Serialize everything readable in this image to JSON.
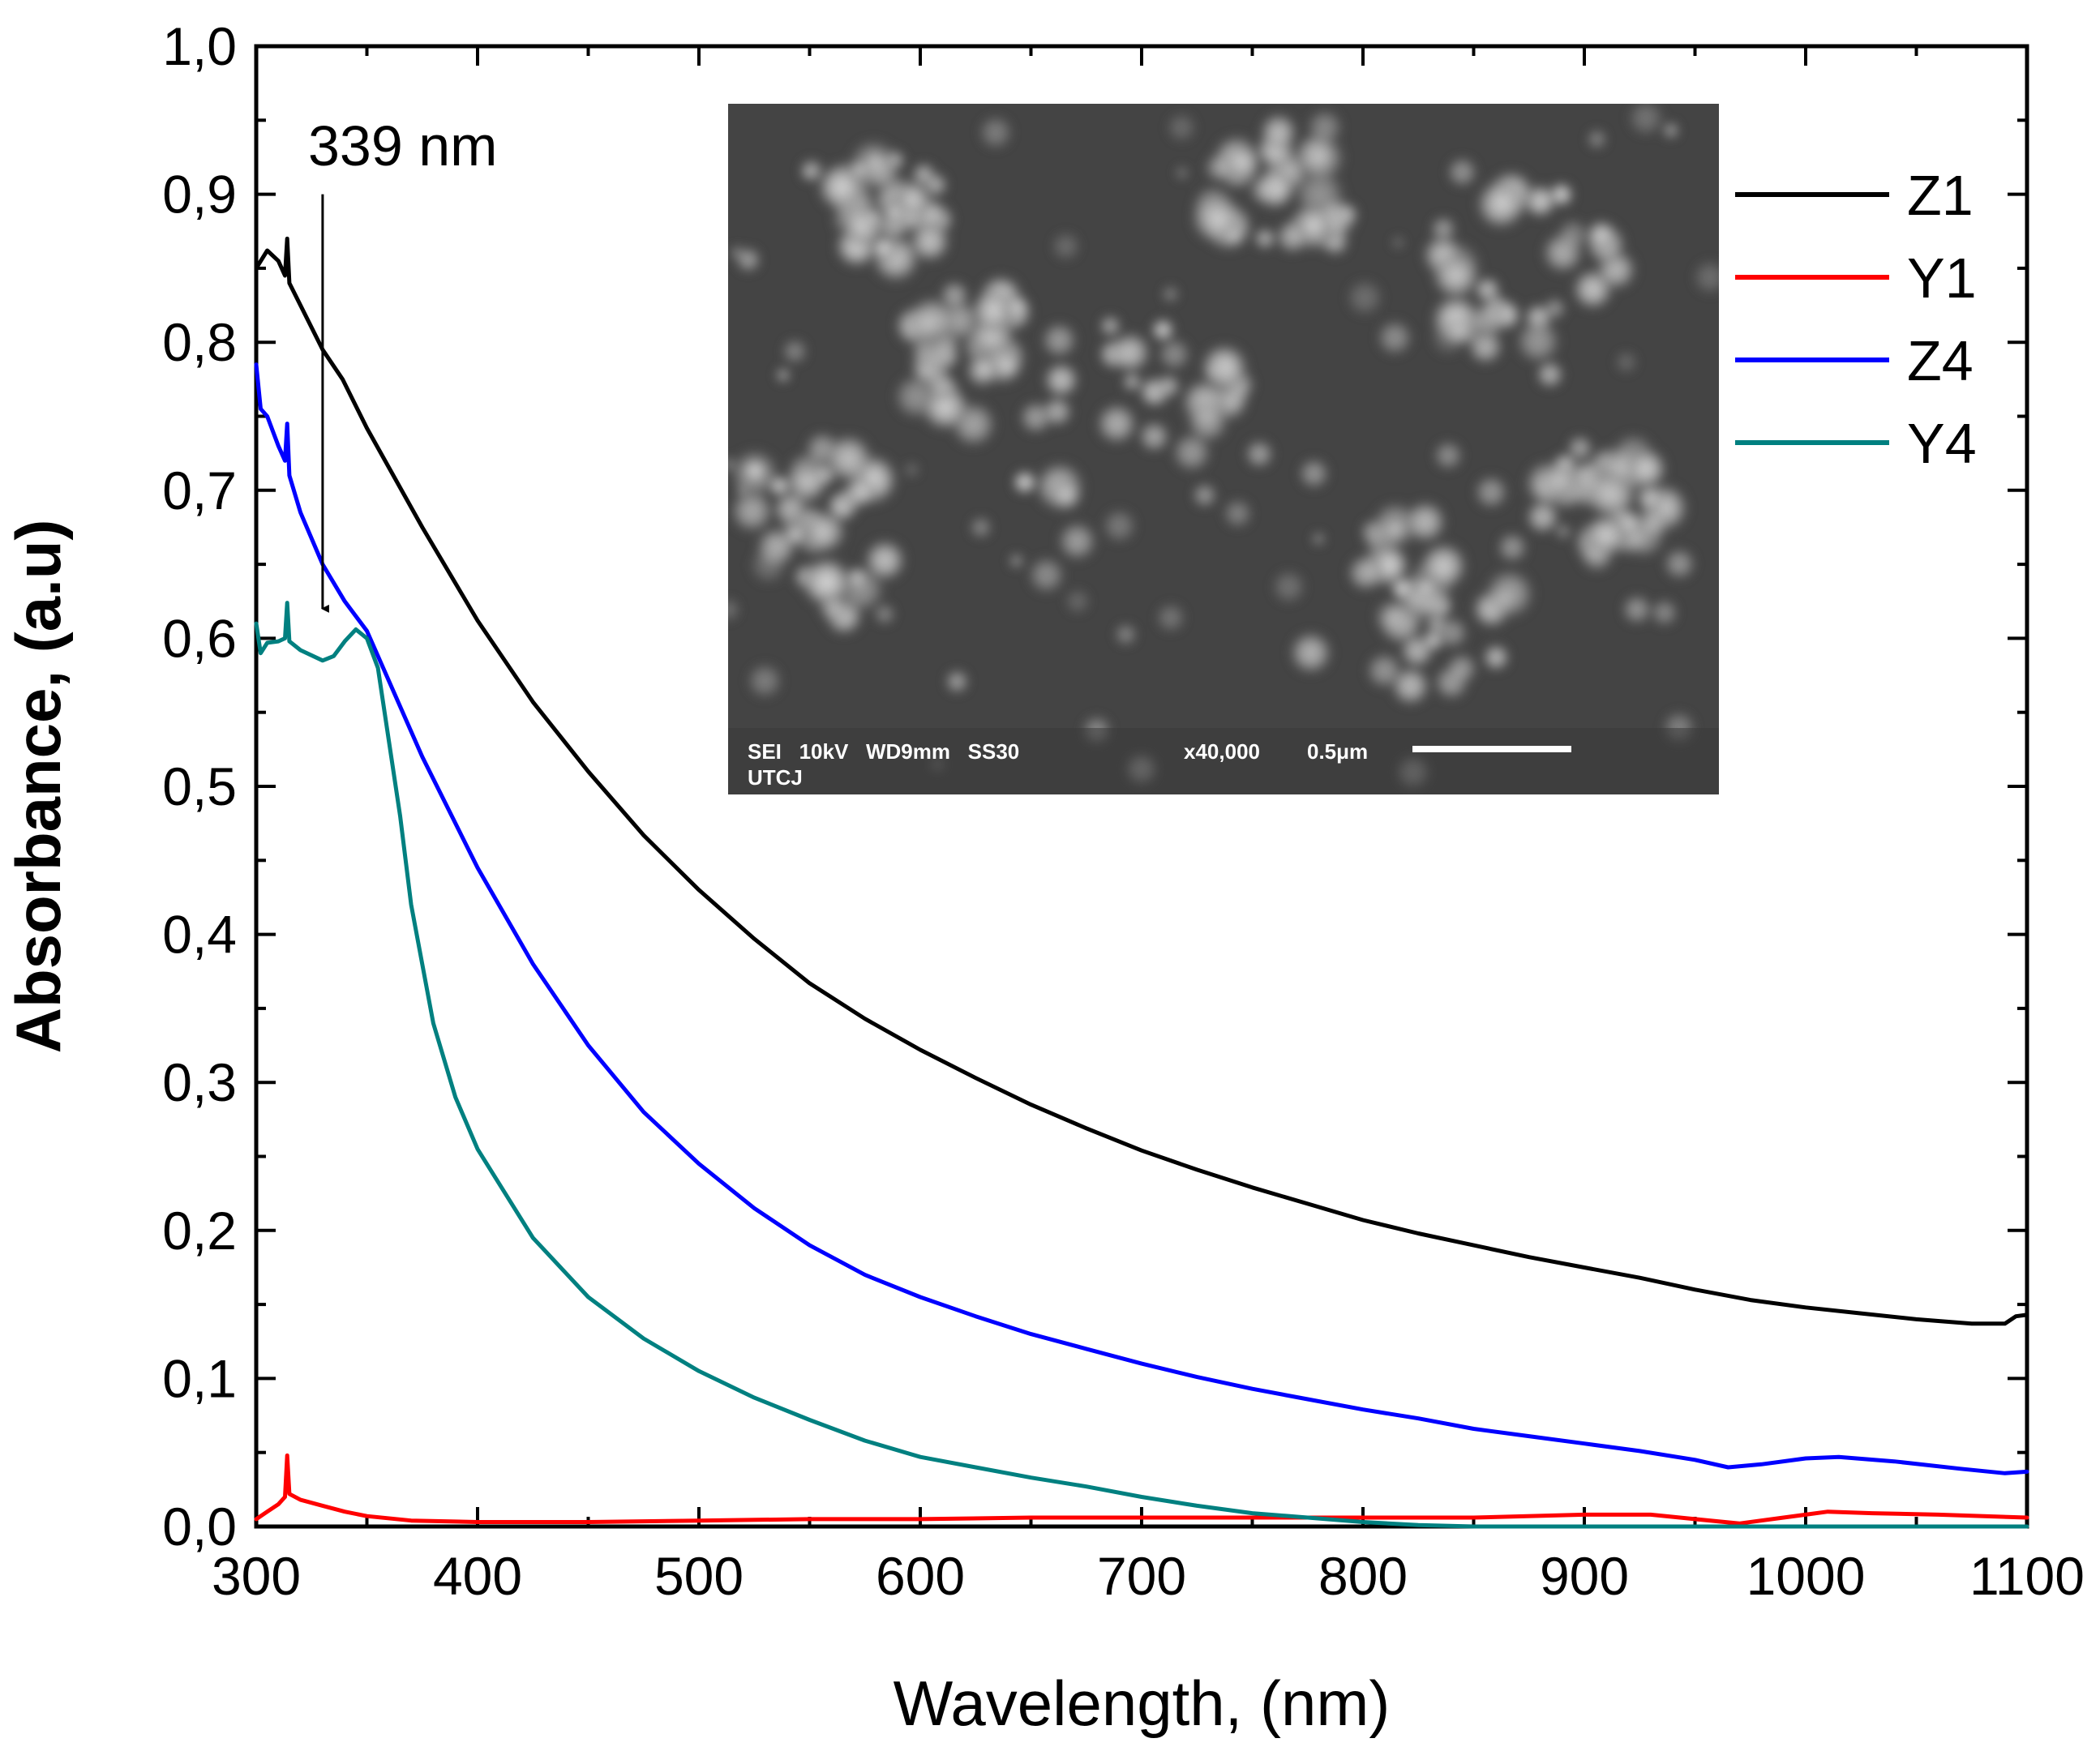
{
  "chart_data": {
    "type": "line",
    "title": "",
    "xlabel": "Wavelength, (nm)",
    "ylabel": "Absorbance, (a.u)",
    "xlim": [
      300,
      1100
    ],
    "ylim": [
      0.0,
      1.0
    ],
    "x_ticks": [
      {
        "value": 300,
        "label": "300"
      },
      {
        "value": 400,
        "label": "400"
      },
      {
        "value": 500,
        "label": "500"
      },
      {
        "value": 600,
        "label": "600"
      },
      {
        "value": 700,
        "label": "700"
      },
      {
        "value": 800,
        "label": "800"
      },
      {
        "value": 900,
        "label": "900"
      },
      {
        "value": 1000,
        "label": "1000"
      },
      {
        "value": 1100,
        "label": "1100"
      }
    ],
    "y_ticks": [
      {
        "value": 0.0,
        "label": "0,0"
      },
      {
        "value": 0.1,
        "label": "0,1"
      },
      {
        "value": 0.2,
        "label": "0,2"
      },
      {
        "value": 0.3,
        "label": "0,3"
      },
      {
        "value": 0.4,
        "label": "0,4"
      },
      {
        "value": 0.5,
        "label": "0,5"
      },
      {
        "value": 0.6,
        "label": "0,6"
      },
      {
        "value": 0.7,
        "label": "0,7"
      },
      {
        "value": 0.8,
        "label": "0,8"
      },
      {
        "value": 0.9,
        "label": "0,9"
      },
      {
        "value": 1.0,
        "label": "1,0"
      }
    ],
    "grid": false,
    "legend_position": "top-right",
    "series": [
      {
        "name": "Z1",
        "color": "#000000",
        "points": [
          [
            300,
            0.85
          ],
          [
            305,
            0.862
          ],
          [
            310,
            0.855
          ],
          [
            313,
            0.845
          ],
          [
            314,
            0.87
          ],
          [
            315,
            0.84
          ],
          [
            320,
            0.825
          ],
          [
            330,
            0.795
          ],
          [
            339,
            0.775
          ],
          [
            350,
            0.742
          ],
          [
            375,
            0.675
          ],
          [
            400,
            0.612
          ],
          [
            425,
            0.557
          ],
          [
            450,
            0.51
          ],
          [
            475,
            0.467
          ],
          [
            500,
            0.43
          ],
          [
            525,
            0.397
          ],
          [
            550,
            0.367
          ],
          [
            575,
            0.343
          ],
          [
            600,
            0.322
          ],
          [
            625,
            0.303
          ],
          [
            650,
            0.285
          ],
          [
            675,
            0.269
          ],
          [
            700,
            0.254
          ],
          [
            725,
            0.241
          ],
          [
            750,
            0.229
          ],
          [
            775,
            0.218
          ],
          [
            800,
            0.207
          ],
          [
            825,
            0.198
          ],
          [
            850,
            0.19
          ],
          [
            875,
            0.182
          ],
          [
            900,
            0.175
          ],
          [
            925,
            0.168
          ],
          [
            950,
            0.16
          ],
          [
            975,
            0.153
          ],
          [
            1000,
            0.148
          ],
          [
            1025,
            0.144
          ],
          [
            1050,
            0.14
          ],
          [
            1075,
            0.137
          ],
          [
            1090,
            0.137
          ],
          [
            1095,
            0.142
          ],
          [
            1100,
            0.143
          ]
        ]
      },
      {
        "name": "Y1",
        "color": "#ff0000",
        "points": [
          [
            300,
            0.005
          ],
          [
            305,
            0.01
          ],
          [
            310,
            0.015
          ],
          [
            313,
            0.02
          ],
          [
            314,
            0.048
          ],
          [
            315,
            0.022
          ],
          [
            320,
            0.018
          ],
          [
            330,
            0.014
          ],
          [
            340,
            0.01
          ],
          [
            350,
            0.007
          ],
          [
            370,
            0.004
          ],
          [
            400,
            0.003
          ],
          [
            450,
            0.003
          ],
          [
            500,
            0.004
          ],
          [
            550,
            0.005
          ],
          [
            600,
            0.005
          ],
          [
            650,
            0.006
          ],
          [
            700,
            0.006
          ],
          [
            750,
            0.006
          ],
          [
            800,
            0.006
          ],
          [
            850,
            0.006
          ],
          [
            900,
            0.008
          ],
          [
            930,
            0.008
          ],
          [
            950,
            0.005
          ],
          [
            970,
            0.002
          ],
          [
            990,
            0.006
          ],
          [
            1010,
            0.01
          ],
          [
            1030,
            0.009
          ],
          [
            1060,
            0.008
          ],
          [
            1100,
            0.006
          ]
        ]
      },
      {
        "name": "Z4",
        "color": "#0000ff",
        "points": [
          [
            300,
            0.785
          ],
          [
            302,
            0.755
          ],
          [
            305,
            0.75
          ],
          [
            310,
            0.73
          ],
          [
            313,
            0.72
          ],
          [
            314,
            0.745
          ],
          [
            315,
            0.71
          ],
          [
            320,
            0.685
          ],
          [
            330,
            0.65
          ],
          [
            340,
            0.625
          ],
          [
            350,
            0.605
          ],
          [
            375,
            0.52
          ],
          [
            400,
            0.445
          ],
          [
            425,
            0.38
          ],
          [
            450,
            0.325
          ],
          [
            475,
            0.28
          ],
          [
            500,
            0.245
          ],
          [
            525,
            0.215
          ],
          [
            550,
            0.19
          ],
          [
            575,
            0.17
          ],
          [
            600,
            0.155
          ],
          [
            625,
            0.142
          ],
          [
            650,
            0.13
          ],
          [
            675,
            0.12
          ],
          [
            700,
            0.11
          ],
          [
            725,
            0.101
          ],
          [
            750,
            0.093
          ],
          [
            775,
            0.086
          ],
          [
            800,
            0.079
          ],
          [
            825,
            0.073
          ],
          [
            850,
            0.066
          ],
          [
            875,
            0.061
          ],
          [
            900,
            0.056
          ],
          [
            925,
            0.051
          ],
          [
            950,
            0.045
          ],
          [
            965,
            0.04
          ],
          [
            980,
            0.042
          ],
          [
            1000,
            0.046
          ],
          [
            1015,
            0.047
          ],
          [
            1040,
            0.044
          ],
          [
            1070,
            0.039
          ],
          [
            1090,
            0.036
          ],
          [
            1100,
            0.037
          ]
        ]
      },
      {
        "name": "Y4",
        "color": "#008080",
        "points": [
          [
            300,
            0.61
          ],
          [
            302,
            0.59
          ],
          [
            305,
            0.597
          ],
          [
            310,
            0.598
          ],
          [
            313,
            0.6
          ],
          [
            314,
            0.624
          ],
          [
            315,
            0.598
          ],
          [
            320,
            0.592
          ],
          [
            330,
            0.585
          ],
          [
            335,
            0.588
          ],
          [
            340,
            0.598
          ],
          [
            345,
            0.606
          ],
          [
            350,
            0.6
          ],
          [
            355,
            0.58
          ],
          [
            360,
            0.53
          ],
          [
            365,
            0.48
          ],
          [
            370,
            0.42
          ],
          [
            380,
            0.34
          ],
          [
            390,
            0.29
          ],
          [
            400,
            0.255
          ],
          [
            425,
            0.195
          ],
          [
            450,
            0.155
          ],
          [
            475,
            0.127
          ],
          [
            500,
            0.105
          ],
          [
            525,
            0.087
          ],
          [
            550,
            0.072
          ],
          [
            575,
            0.058
          ],
          [
            600,
            0.047
          ],
          [
            625,
            0.04
          ],
          [
            650,
            0.033
          ],
          [
            675,
            0.027
          ],
          [
            700,
            0.02
          ],
          [
            725,
            0.014
          ],
          [
            750,
            0.009
          ],
          [
            775,
            0.006
          ],
          [
            800,
            0.003
          ],
          [
            825,
            0.001
          ],
          [
            850,
            0.0
          ],
          [
            900,
            0.0
          ],
          [
            950,
            0.0
          ],
          [
            1000,
            0.0
          ],
          [
            1050,
            0.0
          ],
          [
            1100,
            0.0
          ]
        ]
      }
    ],
    "annotations": [
      {
        "text": "339 nm",
        "arrow_x": 330,
        "arrow_y_from": 0.9,
        "arrow_y_to": 0.62
      }
    ],
    "inset": {
      "kind": "SEM micrograph",
      "info_line_1": "SEI   10kV   WD9mm   SS30",
      "magnification": "x40,000",
      "scale_bar_label": "0.5μm",
      "info_line_2": "UTCJ"
    }
  }
}
